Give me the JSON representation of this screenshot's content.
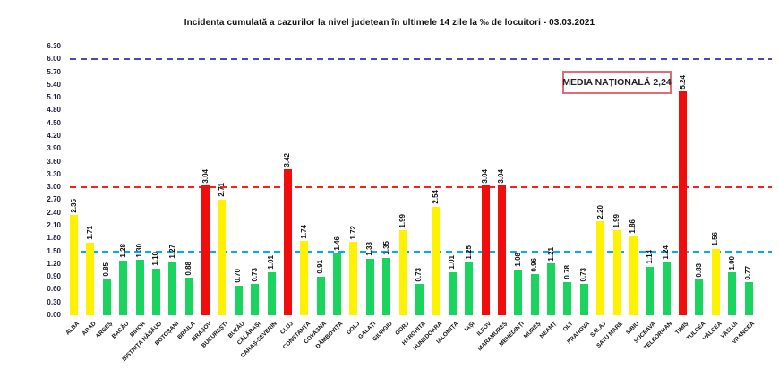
{
  "title": "Incidența cumulată a cazurilor la nivel județean în ultimele 14 zile la ‰ de locuitori - 03.03.2021",
  "annotation": {
    "label": "MEDIA NAȚIONALĂ 2,24"
  },
  "chart_data": {
    "type": "bar",
    "title": "Incidența cumulată a cazurilor la nivel județean în ultimele 14 zile la ‰ de locuitori - 03.03.2021",
    "categories": [
      "ALBA",
      "ARAD",
      "ARGEȘ",
      "BACĂU",
      "BIHOR",
      "BISTRIȚA NĂSĂUD",
      "BOTOȘANI",
      "BRĂILA",
      "BRAȘOV",
      "BUCUREȘTI",
      "BUZĂU",
      "CĂLĂRAȘI",
      "CARAȘ-SEVERIN",
      "CLUJ",
      "CONSTANȚA",
      "COVASNA",
      "DÂMBOVIȚA",
      "DOLJ",
      "GALAȚI",
      "GIURGIU",
      "GORJ",
      "HARGHITA",
      "HUNEDOARA",
      "IALOMIȚA",
      "IAȘI",
      "ILFOV",
      "MARAMUREȘ",
      "MEHEDINȚI",
      "MUREȘ",
      "NEAMȚ",
      "OLT",
      "PRAHOVA",
      "SĂLAJ",
      "SATU MARE",
      "SIBIU",
      "SUCEAVA",
      "TELEORMAN",
      "TIMIȘ",
      "TULCEA",
      "VÂLCEA",
      "VASLUI",
      "VRANCEA"
    ],
    "values": [
      2.35,
      1.71,
      0.85,
      1.28,
      1.3,
      1.1,
      1.27,
      0.88,
      3.04,
      2.71,
      0.7,
      0.73,
      1.01,
      3.42,
      1.74,
      0.91,
      1.46,
      1.72,
      1.33,
      1.35,
      1.99,
      0.73,
      2.54,
      1.01,
      1.25,
      3.04,
      3.04,
      1.08,
      0.96,
      1.21,
      0.78,
      0.73,
      2.2,
      1.99,
      1.86,
      1.14,
      1.24,
      5.24,
      0.83,
      1.56,
      1.0,
      0.77
    ],
    "national_average_label": "MEDIA NAȚIONALĂ 2,24",
    "ylim": [
      0,
      6.3
    ],
    "ytick_step": 0.3,
    "xlabel": "",
    "ylabel": "",
    "grid": false,
    "reference_lines": [
      {
        "value": 6.0,
        "color": "#4a49c0"
      },
      {
        "value": 3.0,
        "color": "#ff1f1f"
      },
      {
        "value": 1.5,
        "color": "#00aeef"
      }
    ],
    "color_thresholds": {
      "red_min": 3.0,
      "yellow_min": 1.5
    },
    "colors": {
      "green": "#1bd35f",
      "yellow": "#fff200",
      "red": "#f20d0d"
    }
  }
}
